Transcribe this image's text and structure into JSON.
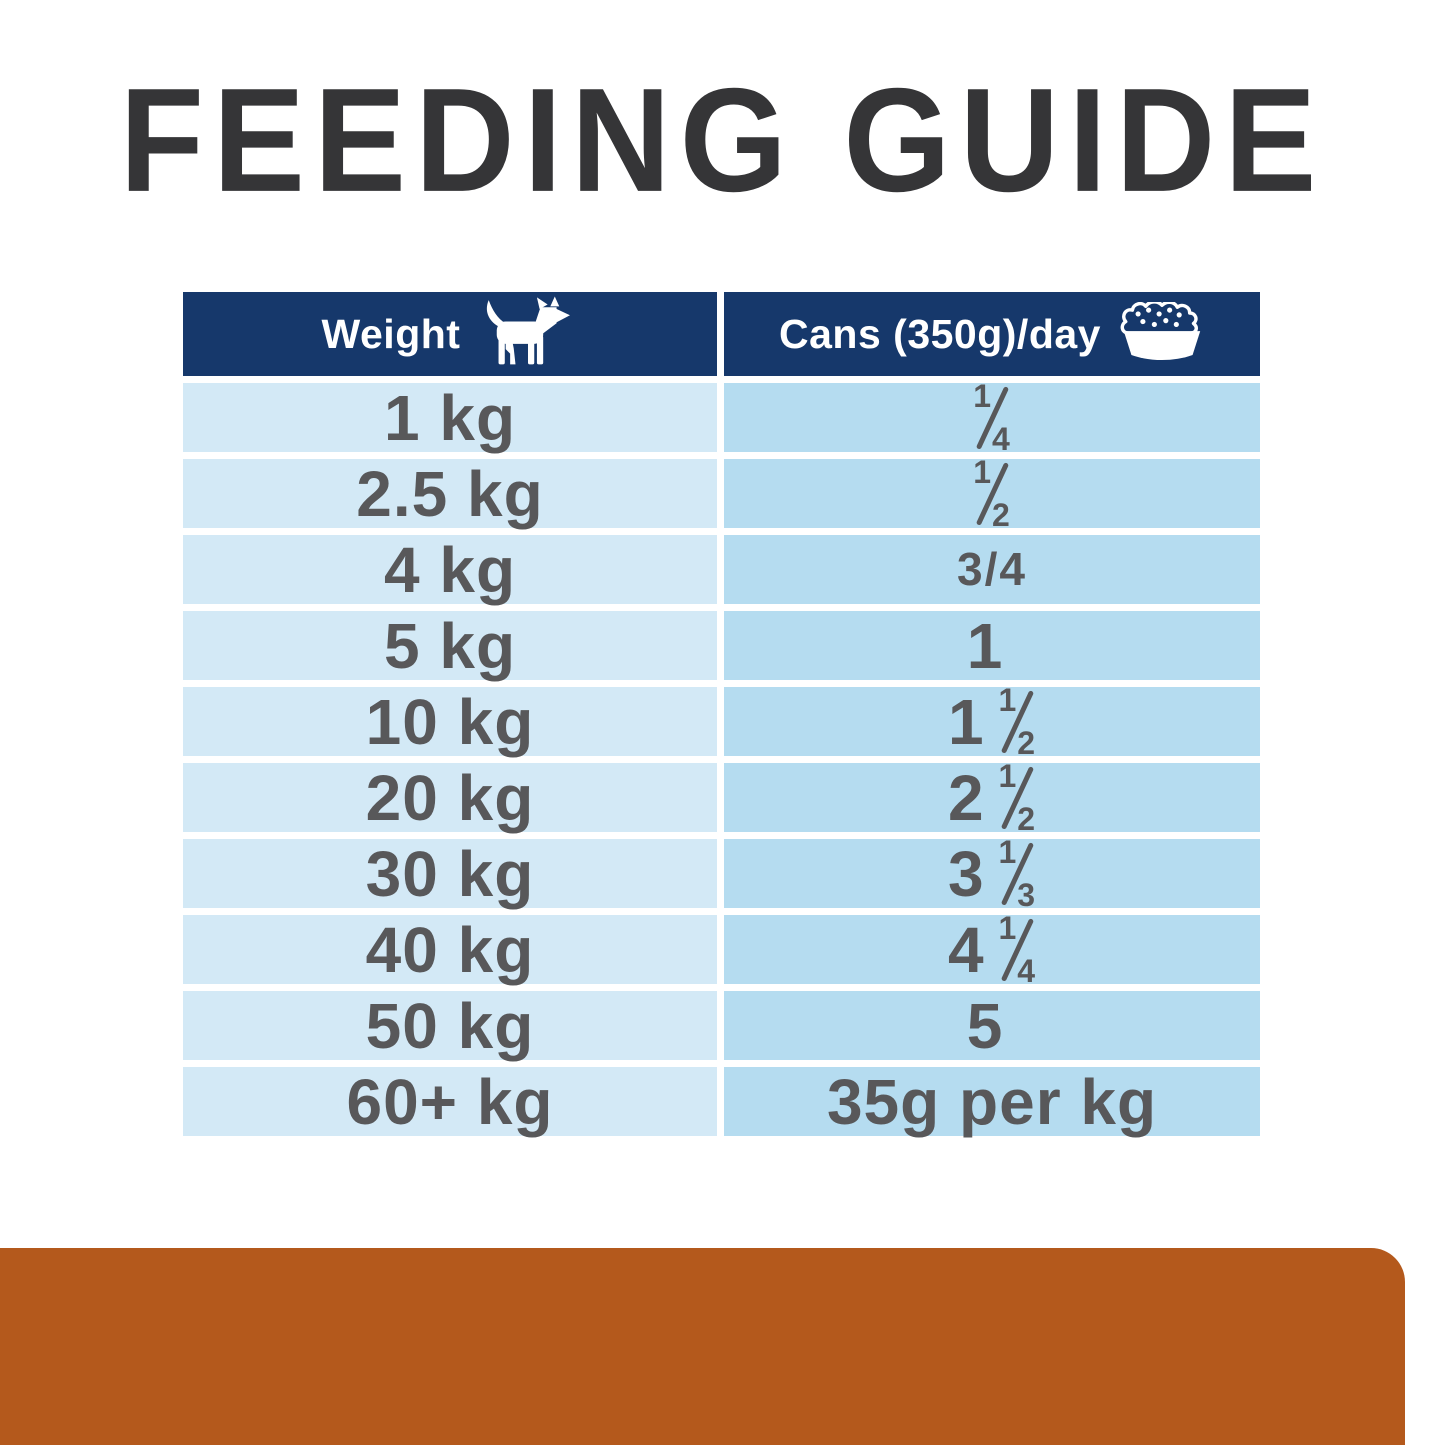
{
  "title": "FEEDING GUIDE",
  "colors": {
    "header_navy": "#16386B",
    "weight_column_blue": "#D3E9F6",
    "cans_column_blue": "#B5DCF0",
    "cell_text_gray": "#58585A",
    "title_color": "#353537",
    "accent_orange": "#B4591C",
    "background": "#FFFFFF"
  },
  "table": {
    "headers": [
      {
        "label": "Weight",
        "icon": "dog-icon"
      },
      {
        "label": "Cans (350g)/day",
        "icon": "food-bowl-icon"
      }
    ],
    "rows": [
      {
        "weight": "1 kg",
        "cans": {
          "num": "1",
          "den": "4"
        }
      },
      {
        "weight": "2.5 kg",
        "cans": {
          "num": "1",
          "den": "2"
        }
      },
      {
        "weight": "4 kg",
        "cans": {
          "inline": "3/4"
        }
      },
      {
        "weight": "5 kg",
        "cans": {
          "whole": "1"
        }
      },
      {
        "weight": "10 kg",
        "cans": {
          "whole": "1",
          "num": "1",
          "den": "2"
        }
      },
      {
        "weight": "20 kg",
        "cans": {
          "whole": "2",
          "num": "1",
          "den": "2"
        }
      },
      {
        "weight": "30 kg",
        "cans": {
          "whole": "3",
          "num": "1",
          "den": "3"
        }
      },
      {
        "weight": "40 kg",
        "cans": {
          "whole": "4",
          "num": "1",
          "den": "4"
        }
      },
      {
        "weight": "50 kg",
        "cans": {
          "whole": "5"
        }
      },
      {
        "weight": "60+ kg",
        "cans": {
          "text": "35g per kg"
        }
      }
    ]
  },
  "chart_data": {
    "type": "table",
    "title": "FEEDING GUIDE",
    "columns": [
      "Weight",
      "Cans (350g)/day"
    ],
    "rows": [
      [
        "1 kg",
        "1/4"
      ],
      [
        "2.5 kg",
        "1/2"
      ],
      [
        "4 kg",
        "3/4"
      ],
      [
        "5 kg",
        "1"
      ],
      [
        "10 kg",
        "1 1/2"
      ],
      [
        "20 kg",
        "2 1/2"
      ],
      [
        "30 kg",
        "3 1/3"
      ],
      [
        "40 kg",
        "4 1/4"
      ],
      [
        "50 kg",
        "5"
      ],
      [
        "60+ kg",
        "35g per kg"
      ]
    ]
  }
}
